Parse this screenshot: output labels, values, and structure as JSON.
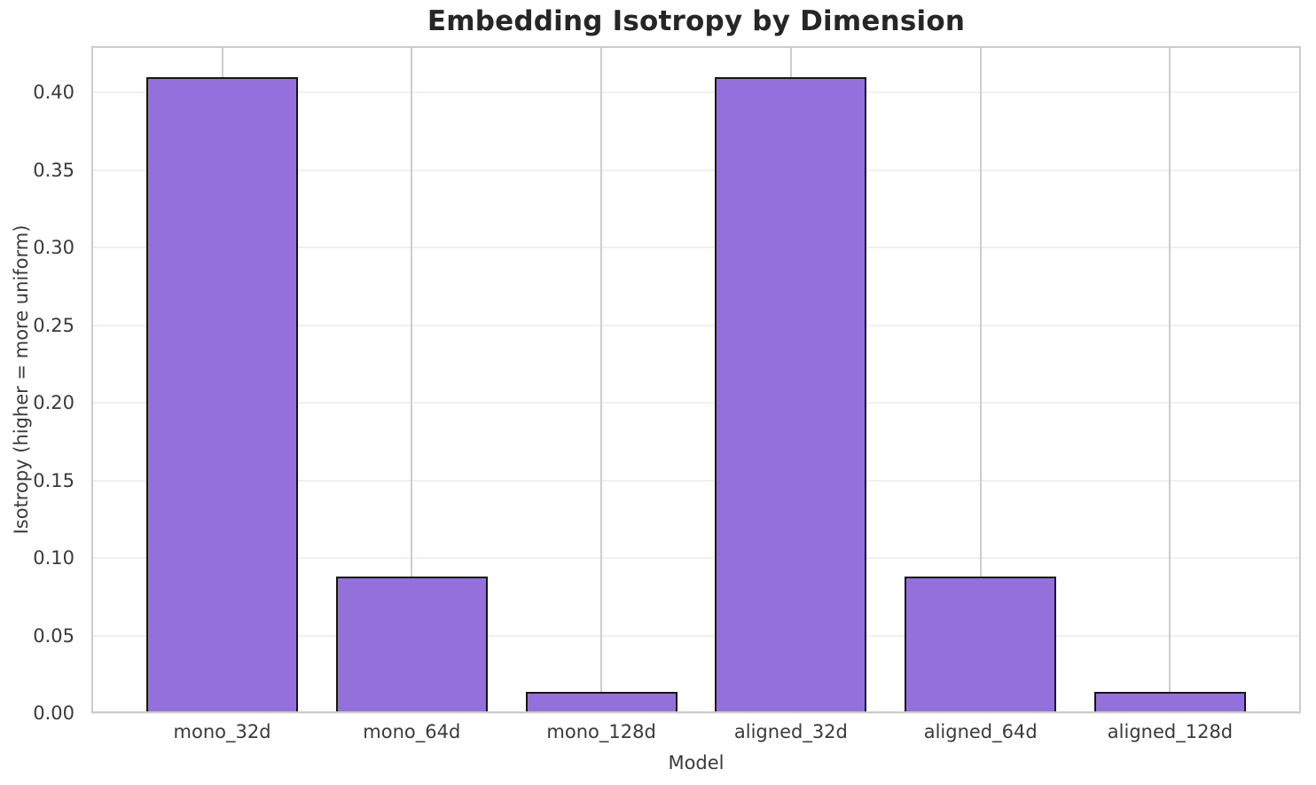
{
  "chart_data": {
    "type": "bar",
    "title": "Embedding Isotropy by Dimension",
    "xlabel": "Model",
    "ylabel": "Isotropy (higher = more uniform)",
    "categories": [
      "mono_32d",
      "mono_64d",
      "mono_128d",
      "aligned_32d",
      "aligned_64d",
      "aligned_128d"
    ],
    "values": [
      0.41,
      0.088,
      0.014,
      0.41,
      0.088,
      0.014
    ],
    "ylim": [
      0,
      0.43
    ],
    "xlim": [
      -0.69,
      5.69
    ],
    "bar_width": 0.8,
    "yticks": [
      0.0,
      0.05,
      0.1,
      0.15,
      0.2,
      0.25,
      0.3,
      0.35,
      0.4
    ],
    "ytick_labels": [
      "0.00",
      "0.05",
      "0.10",
      "0.15",
      "0.20",
      "0.25",
      "0.30",
      "0.35",
      "0.40"
    ],
    "grid": "both",
    "legend_position": "none",
    "bar_color": "#9370db",
    "bar_edge_color": "#151515"
  },
  "style": {
    "background": "#ffffff",
    "title_color": "#262626",
    "tick_color": "#3a3a3a",
    "hgrid_color": "#f0f0f0",
    "vgrid_color": "#cdcdcd",
    "spine_color": "#cccccc"
  }
}
